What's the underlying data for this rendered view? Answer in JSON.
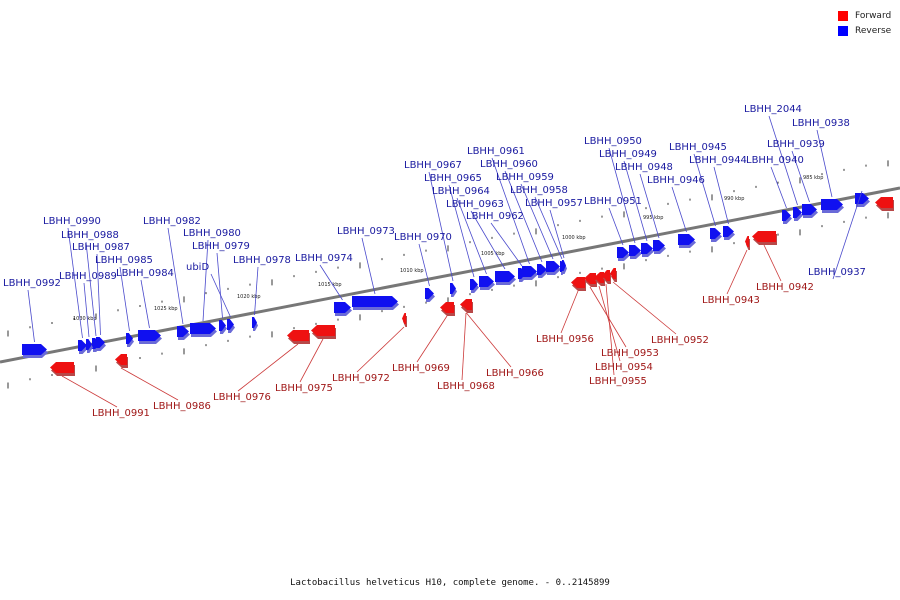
{
  "legend": {
    "forward_label": "Forward",
    "reverse_label": "Reverse",
    "forward_color": "#ff0000",
    "reverse_color": "#0000ff"
  },
  "caption": "Lactobacillus helveticus H10, complete genome. - 0..2145899",
  "scale_labels": [
    "1030 kbp",
    "1025 kbp",
    "1020 kbp",
    "1015 kbp",
    "1010 kbp",
    "1005 kbp",
    "1000 kbp",
    "995 kbp",
    "990 kbp",
    "985 kbp"
  ],
  "reverse_genes": [
    "LBHH_0992",
    "LBHH_0990",
    "LBHH_0988",
    "LBHH_0987",
    "LBHH_0989",
    "LBHH_0985",
    "LBHH_0984",
    "LBHH_0982",
    "LBHH_0980",
    "LBHH_0979",
    "ubiD",
    "LBHH_0978",
    "LBHH_0974",
    "LBHH_0973",
    "LBHH_0970",
    "LBHH_0967",
    "LBHH_0965",
    "LBHH_0964",
    "LBHH_0963",
    "LBHH_0962",
    "LBHH_0961",
    "LBHH_0960",
    "LBHH_0959",
    "LBHH_0958",
    "LBHH_0957",
    "LBHH_0951",
    "LBHH_0950",
    "LBHH_0949",
    "LBHH_0948",
    "LBHH_0946",
    "LBHH_0945",
    "LBHH_0944",
    "LBHH_0940",
    "LBHH_2044",
    "LBHH_0939",
    "LBHH_0938",
    "LBHH_0937"
  ],
  "forward_genes": [
    "LBHH_0991",
    "LBHH_0986",
    "LBHH_0976",
    "LBHH_0975",
    "LBHH_0972",
    "LBHH_0969",
    "LBHH_0968",
    "LBHH_0966",
    "LBHH_0956",
    "LBHH_0953",
    "LBHH_0954",
    "LBHH_0955",
    "LBHH_0952",
    "LBHH_0943",
    "LBHH_0942"
  ]
}
